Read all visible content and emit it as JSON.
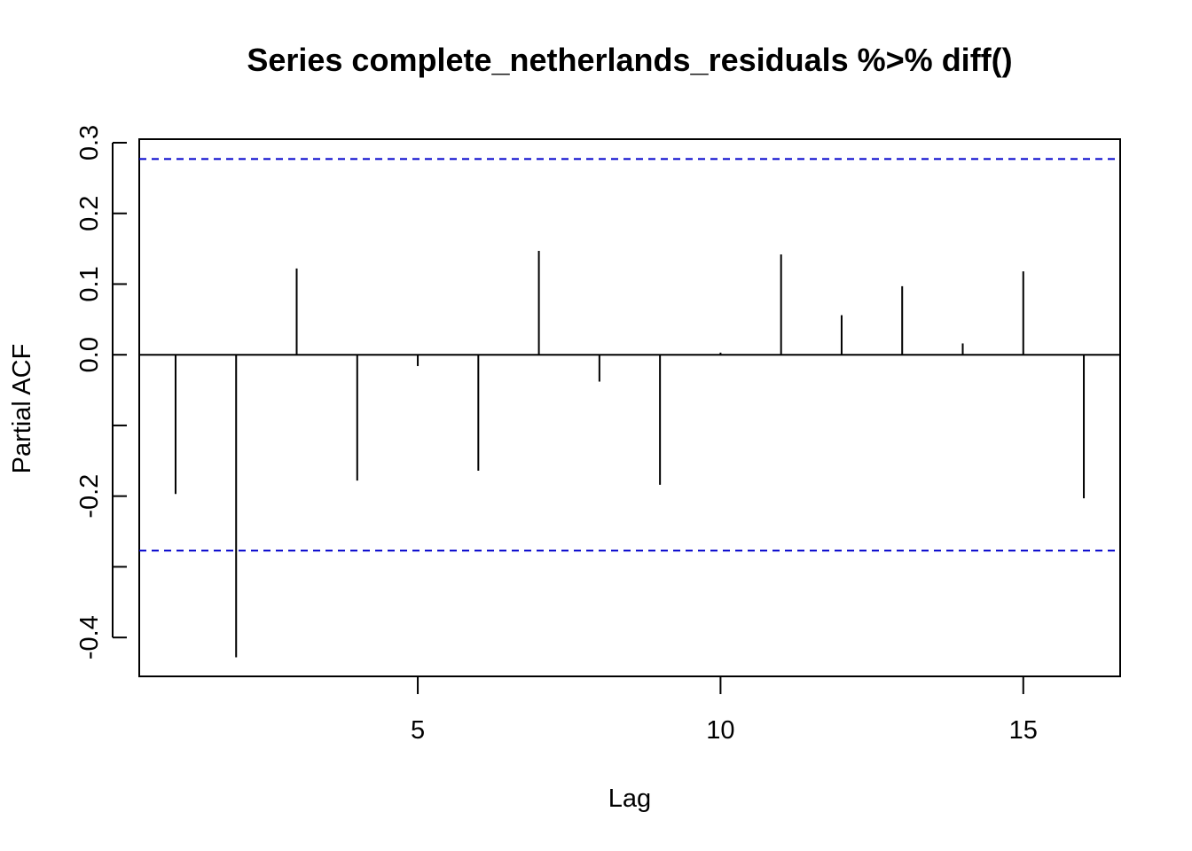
{
  "chart_data": {
    "type": "bar",
    "title": "Series  complete_netherlands_residuals %>% diff()",
    "xlabel": "Lag",
    "ylabel": "Partial ACF",
    "xlim": [
      0.4,
      16.6
    ],
    "ylim": [
      -0.455,
      0.305
    ],
    "x_ticks": [
      5,
      10,
      15
    ],
    "x_tick_labels": [
      "5",
      "10",
      "15"
    ],
    "y_ticks": [
      -0.4,
      -0.3,
      -0.2,
      -0.1,
      0.0,
      0.1,
      0.2,
      0.3
    ],
    "y_tick_labels": [
      "-0.4",
      "",
      "-0.2",
      "",
      "0.0",
      "0.1",
      "0.2",
      "0.3"
    ],
    "lags": [
      1,
      2,
      3,
      4,
      5,
      6,
      7,
      8,
      9,
      10,
      11,
      12,
      13,
      14,
      15,
      16
    ],
    "values": [
      -0.197,
      -0.428,
      0.122,
      -0.178,
      -0.016,
      -0.164,
      0.147,
      -0.038,
      -0.184,
      0.003,
      0.142,
      0.056,
      0.097,
      0.016,
      0.118,
      -0.203
    ],
    "confidence_bound": 0.277,
    "grid": false,
    "colors": {
      "bars": "#000000",
      "ci_lines": "#0000cc",
      "frame": "#000000"
    }
  }
}
